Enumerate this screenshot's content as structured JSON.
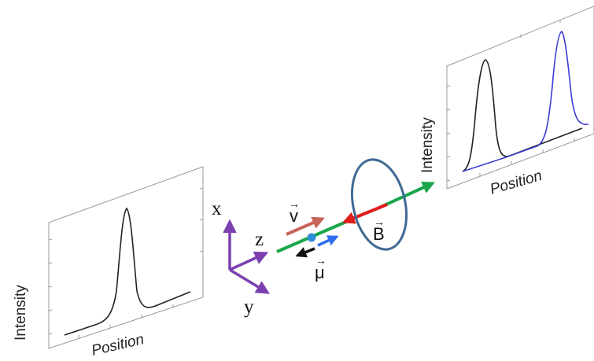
{
  "left_panel": {
    "y_label": "Intensity",
    "x_label": "Position"
  },
  "right_panel": {
    "y_label": "Intensity",
    "x_label": "Position"
  },
  "axes": {
    "x": "x",
    "y": "y",
    "z": "z"
  },
  "vectors": {
    "velocity": "v",
    "moment": "μ",
    "field": "B"
  },
  "colors": {
    "axes_triad": "#7b3fb0",
    "beam": "#1aa64a",
    "field_arrow": "#e01b1b",
    "velocity_arrow": "#c8645a",
    "moment_arrow": "#2f6df0",
    "reverse_arrow": "#111111",
    "particle": "#2f8fd6",
    "coil": "#3f6a94",
    "profile_black": "#222222",
    "profile_blue": "#3b3bd6",
    "frame": "#888888"
  }
}
